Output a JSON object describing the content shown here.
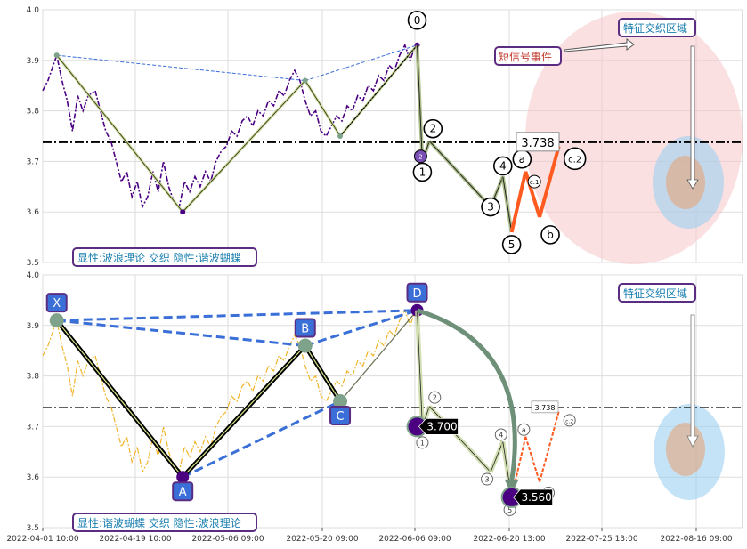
{
  "chart_data": {
    "type": "line",
    "title": "",
    "xlabel": "",
    "ylabel": "",
    "x_ticks": [
      "2022-04-01 10:00",
      "2022-04-19 10:00",
      "2022-05-06 09:00",
      "2022-05-20 09:00",
      "2022-06-06 09:00",
      "2022-06-20 13:00",
      "2022-07-25 13:00",
      "2022-08-16 09:00"
    ],
    "ylim": [
      3.5,
      4.0
    ],
    "y_ticks": [
      "3.5",
      "3.6",
      "3.7",
      "3.8",
      "3.9",
      "4.0"
    ],
    "grid": true,
    "reference_level": 3.738,
    "reference_label": "3.738",
    "x_max": 800,
    "price": [
      [
        0,
        3.84
      ],
      [
        6,
        3.86
      ],
      [
        12,
        3.89
      ],
      [
        16,
        3.91
      ],
      [
        22,
        3.86
      ],
      [
        28,
        3.82
      ],
      [
        34,
        3.76
      ],
      [
        40,
        3.83
      ],
      [
        46,
        3.8
      ],
      [
        52,
        3.83
      ],
      [
        60,
        3.84
      ],
      [
        66,
        3.8
      ],
      [
        72,
        3.76
      ],
      [
        78,
        3.74
      ],
      [
        84,
        3.7
      ],
      [
        90,
        3.66
      ],
      [
        96,
        3.68
      ],
      [
        102,
        3.63
      ],
      [
        108,
        3.66
      ],
      [
        114,
        3.61
      ],
      [
        120,
        3.63
      ],
      [
        126,
        3.68
      ],
      [
        132,
        3.64
      ],
      [
        138,
        3.7
      ],
      [
        144,
        3.65
      ],
      [
        150,
        3.62
      ],
      [
        156,
        3.61
      ],
      [
        162,
        3.66
      ],
      [
        168,
        3.64
      ],
      [
        174,
        3.67
      ],
      [
        180,
        3.65
      ],
      [
        186,
        3.68
      ],
      [
        192,
        3.66
      ],
      [
        198,
        3.7
      ],
      [
        204,
        3.72
      ],
      [
        210,
        3.73
      ],
      [
        216,
        3.76
      ],
      [
        222,
        3.75
      ],
      [
        228,
        3.78
      ],
      [
        234,
        3.79
      ],
      [
        240,
        3.77
      ],
      [
        246,
        3.8
      ],
      [
        252,
        3.79
      ],
      [
        258,
        3.82
      ],
      [
        264,
        3.81
      ],
      [
        270,
        3.84
      ],
      [
        276,
        3.83
      ],
      [
        282,
        3.86
      ],
      [
        288,
        3.88
      ],
      [
        294,
        3.86
      ],
      [
        300,
        3.82
      ],
      [
        306,
        3.79
      ],
      [
        312,
        3.8
      ],
      [
        318,
        3.76
      ],
      [
        324,
        3.75
      ],
      [
        330,
        3.77
      ],
      [
        336,
        3.79
      ],
      [
        342,
        3.78
      ],
      [
        348,
        3.81
      ],
      [
        354,
        3.8
      ],
      [
        360,
        3.83
      ],
      [
        366,
        3.82
      ],
      [
        372,
        3.85
      ],
      [
        378,
        3.84
      ],
      [
        384,
        3.87
      ],
      [
        390,
        3.86
      ],
      [
        396,
        3.89
      ],
      [
        402,
        3.88
      ],
      [
        408,
        3.91
      ],
      [
        414,
        3.93
      ],
      [
        420,
        3.9
      ],
      [
        424,
        3.92
      ],
      [
        428,
        3.93
      ]
    ],
    "wave": [
      {
        "x": 428,
        "y": 3.93,
        "label": "0"
      },
      {
        "x": 434,
        "y": 3.7,
        "label": "1"
      },
      {
        "x": 442,
        "y": 3.74,
        "label": "2"
      },
      {
        "x": 512,
        "y": 3.61,
        "label": "3"
      },
      {
        "x": 526,
        "y": 3.67,
        "label": "4"
      },
      {
        "x": 536,
        "y": 3.56,
        "label": "5"
      },
      {
        "x": 552,
        "y": 3.68,
        "label": "a"
      },
      {
        "x": 568,
        "y": 3.59,
        "label": "b"
      },
      {
        "x": 590,
        "y": 3.73,
        "label": "c.2"
      }
    ],
    "wave_mini": [
      {
        "x": 562,
        "y": 3.66,
        "label": "c.1"
      },
      {
        "x": 432,
        "y": 3.71,
        "label": "2"
      }
    ],
    "harmonic": [
      {
        "x": 16,
        "y": 3.91,
        "label": "X"
      },
      {
        "x": 160,
        "y": 3.6,
        "label": "A"
      },
      {
        "x": 300,
        "y": 3.86,
        "label": "B"
      },
      {
        "x": 340,
        "y": 3.75,
        "label": "C"
      },
      {
        "x": 428,
        "y": 3.93,
        "label": "D"
      }
    ],
    "price_tags": [
      {
        "x": 428,
        "y": 3.7,
        "label": "3.700"
      },
      {
        "x": 536,
        "y": 3.56,
        "label": "3.560"
      }
    ]
  },
  "panels": {
    "top": {
      "label": "显性:波浪理论 交织 隐性:谐波蝴蝶",
      "zone_label": "特征交织区域",
      "event_label": "短信号事件"
    },
    "bottom": {
      "label": "显性:谐波蝴蝶 交织 隐性:波浪理论",
      "zone_label": "特征交织区域"
    }
  },
  "colors": {
    "price_top": "#4b0082",
    "price_bottom": "#f0b429",
    "harmonic_blue": "#3a6fd8",
    "wave_orange": "#ff5a1f",
    "zone_pink": "#f6c6c8",
    "zone_blue": "#9fd0f0",
    "reference_line": "#000000"
  }
}
